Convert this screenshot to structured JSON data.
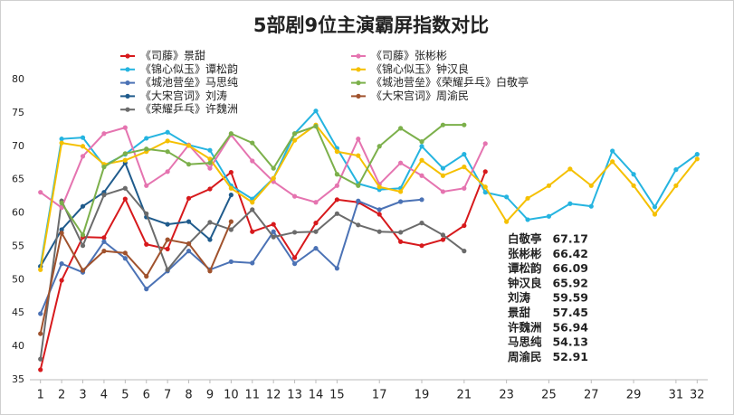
{
  "chart_data": {
    "type": "line",
    "title": "5部剧9位主演霸屏指数对比",
    "x": [
      1,
      2,
      3,
      4,
      5,
      6,
      7,
      8,
      9,
      10,
      11,
      12,
      13,
      14,
      15,
      16,
      17,
      18,
      19,
      20,
      21,
      22,
      23,
      24,
      25,
      26,
      27,
      28,
      29,
      30,
      31,
      32
    ],
    "xlim": [
      0.5,
      32.5
    ],
    "xticks": [
      1,
      2,
      3,
      4,
      5,
      6,
      7,
      8,
      9,
      10,
      11,
      12,
      13,
      14,
      15,
      17,
      19,
      21,
      23,
      25,
      27,
      29,
      31,
      32
    ],
    "ylim": [
      35,
      80
    ],
    "yticks": [
      35,
      40,
      45,
      50,
      55,
      60,
      65,
      70,
      75,
      80
    ],
    "grid": false,
    "legend": "top",
    "series": [
      {
        "name": "《司藤》景甜",
        "color": "#d7191c",
        "values": [
          36.5,
          49.9,
          56.4,
          56.3,
          62.1,
          55.3,
          54.6,
          62.2,
          63.6,
          66.1,
          57.2,
          58.3,
          53.3,
          58.5,
          62,
          61.6,
          59.8,
          55.7,
          55.1,
          56,
          58.1,
          66.2,
          null,
          null,
          null,
          null,
          null,
          null,
          null,
          null,
          null,
          null
        ]
      },
      {
        "name": "《锦心似玉》谭松韵",
        "color": "#25b4e0",
        "values": [
          52,
          71.1,
          71.3,
          67.1,
          68.8,
          71.2,
          72.1,
          70.2,
          69.4,
          64.1,
          62.1,
          65.2,
          71.9,
          75.3,
          69.7,
          64.4,
          63.5,
          63.7,
          70,
          66.7,
          68.8,
          63.1,
          62.4,
          59,
          59.5,
          61.4,
          61,
          69.3,
          65.8,
          60.9,
          66.5,
          68.8
        ]
      },
      {
        "name": "《城池营垒》马思纯",
        "color": "#4b72b5",
        "values": [
          44.9,
          52.4,
          51.1,
          55.7,
          53.2,
          48.6,
          51.3,
          54.3,
          51.5,
          52.7,
          52.5,
          57.2,
          52.4,
          54.7,
          51.7,
          61.8,
          60.5,
          61.7,
          62,
          null,
          null,
          null,
          null,
          null,
          null,
          null,
          null,
          null,
          null,
          null,
          null,
          null
        ]
      },
      {
        "name": "《大宋宫词》刘涛",
        "color": "#1f5b8c",
        "values": [
          52,
          57.5,
          61,
          63.1,
          67.5,
          59.4,
          58.3,
          58.7,
          56,
          62.7,
          null,
          null,
          null,
          null,
          null,
          null,
          null,
          null,
          null,
          null,
          null,
          null,
          null,
          null,
          null,
          null,
          null,
          null,
          null,
          null,
          null,
          null
        ]
      },
      {
        "name": "《荣耀乒乓》许魏洲",
        "color": "#6b6b6b",
        "values": [
          38.1,
          61.8,
          55.1,
          62.7,
          63.7,
          59.9,
          51.5,
          55.4,
          58.6,
          57.5,
          60.5,
          56.4,
          57.1,
          57.2,
          59.9,
          58.2,
          57.2,
          57.1,
          58.5,
          56.7,
          54.3,
          null,
          null,
          null,
          null,
          null,
          null,
          null,
          null,
          null,
          null,
          null
        ]
      },
      {
        "name": "《司藤》张彬彬",
        "color": "#e574b0",
        "values": [
          63.1,
          60.8,
          68.5,
          71.9,
          72.8,
          64.1,
          66.2,
          70.2,
          66.7,
          71.7,
          67.8,
          64.7,
          62.5,
          61.6,
          64.1,
          71.1,
          64.3,
          67.5,
          65.6,
          63.2,
          63.7,
          70.4,
          null,
          null,
          null,
          null,
          null,
          null,
          null,
          null,
          null,
          null
        ]
      },
      {
        "name": "《锦心似玉》钟汉良",
        "color": "#f5c000",
        "values": [
          51.5,
          70.5,
          70,
          67.3,
          67.9,
          69.2,
          70.8,
          70.1,
          68.1,
          63.7,
          61.6,
          65.2,
          70.9,
          73.2,
          69.2,
          68.6,
          63.9,
          63.2,
          67.9,
          65.6,
          66.9,
          63.9,
          58.7,
          62.2,
          64.1,
          66.6,
          64.1,
          67.7,
          64.1,
          59.8,
          64.1,
          68.1
        ]
      },
      {
        "name": "《城池营垒》《荣耀乒乓》白敬亭",
        "color": "#7cb04b",
        "values": [
          null,
          61.5,
          56.7,
          66.9,
          68.9,
          69.6,
          69.2,
          67.3,
          67.5,
          71.9,
          70.5,
          66.7,
          71.9,
          73,
          65.8,
          64.1,
          70,
          72.7,
          70.7,
          73.2,
          73.2,
          null,
          null,
          null,
          null,
          null,
          null,
          null,
          null,
          null,
          null,
          null
        ]
      },
      {
        "name": "《大宋宫词》周渝民",
        "color": "#a0522d",
        "values": [
          41.9,
          57,
          51.4,
          54.3,
          54,
          50.5,
          56,
          55.4,
          51.3,
          58.7,
          null,
          null,
          null,
          null,
          null,
          null,
          null,
          null,
          null,
          null,
          null,
          null,
          null,
          null,
          null,
          null,
          null,
          null,
          null,
          null,
          null,
          null
        ]
      }
    ],
    "annotations": [
      {
        "label": "白敬亭",
        "value": 67.17
      },
      {
        "label": "张彬彬",
        "value": 66.42
      },
      {
        "label": "谭松韵",
        "value": 66.09
      },
      {
        "label": "钟汉良",
        "value": 65.92
      },
      {
        "label": "刘涛",
        "value": 59.59
      },
      {
        "label": "景甜",
        "value": 57.45
      },
      {
        "label": "许魏洲",
        "value": 56.94
      },
      {
        "label": "马思纯",
        "value": 54.13
      },
      {
        "label": "周渝民",
        "value": 52.91
      }
    ]
  }
}
